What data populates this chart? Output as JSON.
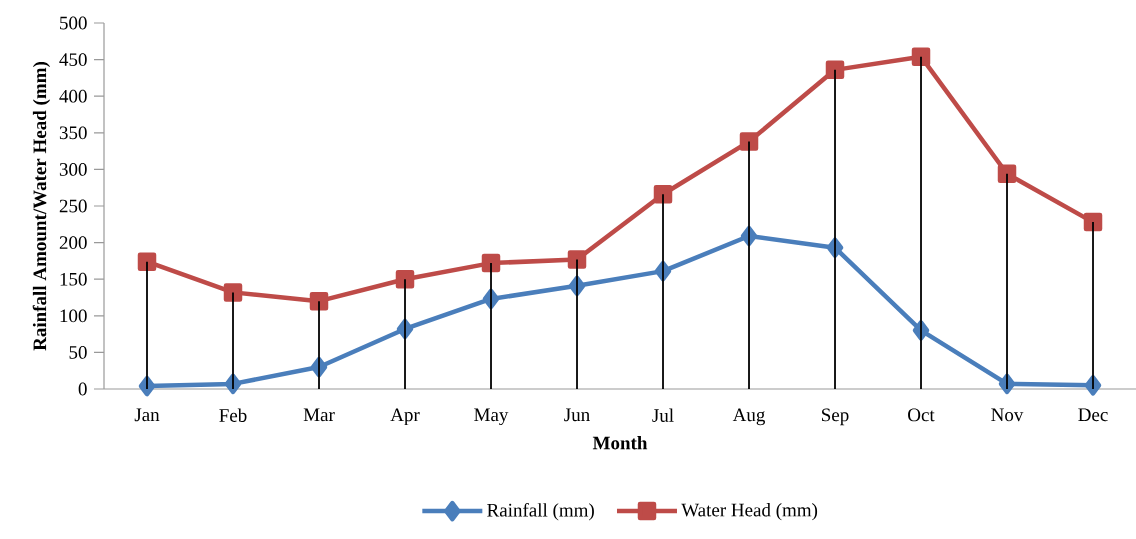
{
  "chart_data": {
    "type": "line",
    "xlabel": "Month",
    "ylabel": "Rainfall Amount/Water Head (mm)",
    "categories": [
      "Jan",
      "Feb",
      "Mar",
      "Apr",
      "May",
      "Jun",
      "Jul",
      "Aug",
      "Sep",
      "Oct",
      "Nov",
      "Dec"
    ],
    "series": [
      {
        "name": "Rainfall (mm)",
        "color": "#4a7ebb",
        "marker": "diamond",
        "values": [
          4,
          7,
          30,
          82,
          123,
          141,
          161,
          209,
          193,
          80,
          7,
          5
        ]
      },
      {
        "name": "Water Head (mm)",
        "color": "#be4b48",
        "marker": "square",
        "values": [
          174,
          132,
          120,
          150,
          172,
          177,
          266,
          338,
          436,
          454,
          294,
          228
        ]
      },
      {
        "type": "bar",
        "color": "#000000",
        "values": [
          174,
          132,
          120,
          150,
          172,
          177,
          266,
          338,
          436,
          454,
          294,
          228
        ]
      }
    ],
    "ylim": [
      0,
      500
    ],
    "yticks": [
      0,
      50,
      100,
      150,
      200,
      250,
      300,
      350,
      400,
      450,
      500
    ],
    "legend": "bottom"
  }
}
